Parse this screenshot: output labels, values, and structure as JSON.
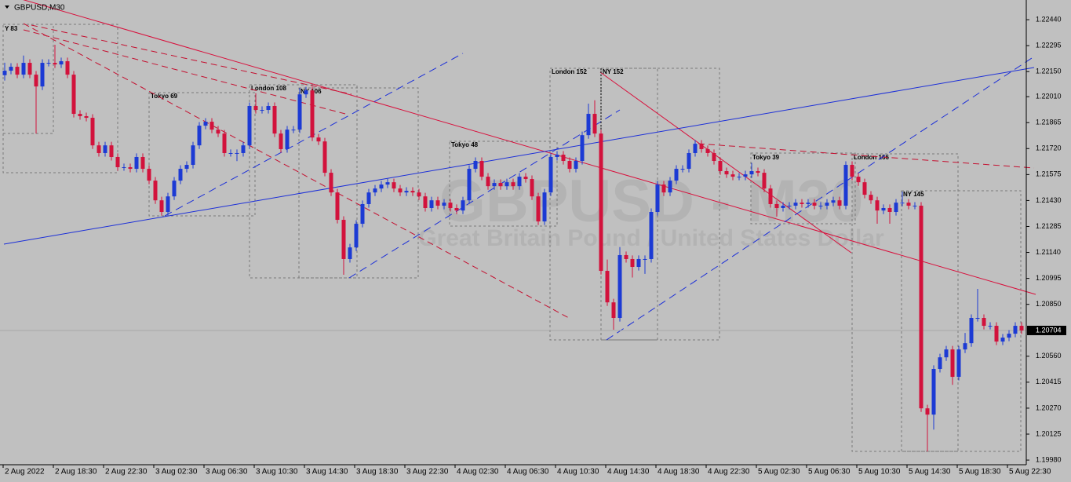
{
  "chart_data": {
    "type": "candlestick",
    "title": "GBPUSD,M30",
    "watermark": "GBPUSD - M30",
    "watermark_subtitle": "Great Britain Pound / United States Dollar",
    "bull_color": "#1c3ad4",
    "bear_color": "#d2123c",
    "open": [
      1.2213,
      1.22155,
      1.22177,
      1.22133,
      1.22199,
      1.22133,
      1.22067,
      1.22199,
      1.22199,
      1.2219,
      1.22208,
      1.22133,
      1.21914,
      1.21901,
      1.21892,
      1.21738,
      1.21695,
      1.21738,
      1.21673,
      1.21616,
      1.21616,
      1.21607,
      1.21673,
      1.21607,
      1.21541,
      1.21431,
      1.21366,
      1.21453,
      1.21541,
      1.21607,
      1.21629,
      1.21738,
      1.21848,
      1.2187,
      1.21826,
      1.21804,
      1.21695,
      1.21695,
      1.21695,
      1.21738,
      1.21958,
      1.21936,
      1.21936,
      1.21958,
      1.21804,
      1.21717,
      1.21826,
      1.21826,
      1.22023,
      1.22045,
      1.21782,
      1.2176,
      1.21585,
      1.21475,
      1.21322,
      1.21103,
      1.21168,
      1.213,
      1.2141,
      1.21475,
      1.21497,
      1.21519,
      1.21532,
      1.21497,
      1.21475,
      1.21484,
      1.21475,
      1.21453,
      1.21388,
      1.21431,
      1.21401,
      1.21418,
      1.21388,
      1.21374,
      1.21431,
      1.21607,
      1.21651,
      1.21563,
      1.2151,
      1.21528,
      1.2151,
      1.21532,
      1.2151,
      1.21563,
      1.2155,
      1.21453,
      1.21313,
      1.21475,
      1.21673,
      1.21686,
      1.21651,
      1.21607,
      1.21651,
      1.21795,
      1.21914,
      1.21804,
      1.21037,
      1.20861,
      1.20774,
      1.21125,
      1.21103,
      1.21059,
      1.21103,
      1.21103,
      1.21366,
      1.21519,
      1.21475,
      1.21541,
      1.21607,
      1.21607,
      1.21695,
      1.21747,
      1.21717,
      1.21695,
      1.21651,
      1.21594,
      1.21576,
      1.21563,
      1.21563,
      1.21576,
      1.21594,
      1.21585,
      1.21497,
      1.2141,
      1.21388,
      1.21401,
      1.21401,
      1.21418,
      1.2141,
      1.21418,
      1.21401,
      1.21401,
      1.21418,
      1.21431,
      1.21401,
      1.21629,
      1.21563,
      1.21532,
      1.21462,
      1.21431,
      1.21374,
      1.21388,
      1.21366,
      1.21418,
      1.21418,
      1.21401,
      1.21401,
      1.20269,
      1.20234,
      1.20489,
      1.20554,
      1.20598,
      1.20445,
      1.20598,
      1.20633,
      1.20774,
      1.20774,
      1.2073,
      1.2073,
      1.20642,
      1.20664,
      1.20686,
      1.2073
    ],
    "high": [
      1.222,
      1.22197,
      1.22197,
      1.2224,
      1.22219,
      1.22153,
      1.22219,
      1.22219,
      1.223,
      1.22228,
      1.22228,
      1.22153,
      1.21934,
      1.21921,
      1.21912,
      1.21758,
      1.21758,
      1.21758,
      1.21693,
      1.21636,
      1.21636,
      1.21693,
      1.21693,
      1.21627,
      1.21561,
      1.21451,
      1.21473,
      1.21561,
      1.21627,
      1.21649,
      1.21758,
      1.21868,
      1.2189,
      1.2189,
      1.21846,
      1.21824,
      1.21715,
      1.21715,
      1.21758,
      1.21978,
      1.2203,
      1.21956,
      1.21978,
      1.21978,
      1.21824,
      1.21846,
      1.21846,
      1.22059,
      1.22065,
      1.22065,
      1.21802,
      1.2178,
      1.21605,
      1.21495,
      1.21342,
      1.21188,
      1.2132,
      1.2143,
      1.21495,
      1.21517,
      1.21539,
      1.21552,
      1.21552,
      1.21517,
      1.21504,
      1.21504,
      1.21495,
      1.21473,
      1.21451,
      1.21451,
      1.21438,
      1.21438,
      1.21408,
      1.21451,
      1.21627,
      1.21671,
      1.21671,
      1.21583,
      1.21548,
      1.21548,
      1.21552,
      1.21552,
      1.21583,
      1.21583,
      1.2157,
      1.21473,
      1.21495,
      1.21693,
      1.21706,
      1.21706,
      1.21671,
      1.21671,
      1.21815,
      1.21971,
      1.2199,
      1.21824,
      1.211,
      1.20881,
      1.2117,
      1.21145,
      1.21123,
      1.21123,
      1.21123,
      1.21386,
      1.21539,
      1.21539,
      1.21561,
      1.21627,
      1.21627,
      1.21715,
      1.21767,
      1.21767,
      1.21737,
      1.21715,
      1.21671,
      1.21614,
      1.21596,
      1.21583,
      1.21596,
      1.2164,
      1.21614,
      1.21605,
      1.21517,
      1.2143,
      1.21421,
      1.21421,
      1.21438,
      1.21438,
      1.21438,
      1.21438,
      1.21421,
      1.21438,
      1.21451,
      1.21451,
      1.21649,
      1.21649,
      1.21583,
      1.21552,
      1.21482,
      1.21451,
      1.21408,
      1.21408,
      1.21438,
      1.2148,
      1.21438,
      1.21421,
      1.21421,
      1.20289,
      1.20509,
      1.20574,
      1.20618,
      1.20618,
      1.20618,
      1.2069,
      1.20794,
      1.20936,
      1.20794,
      1.2075,
      1.2075,
      1.20684,
      1.20706,
      1.2075,
      1.2075
    ],
    "low": [
      1.221,
      1.22135,
      1.22113,
      1.22113,
      1.22113,
      1.21804,
      1.22047,
      1.22179,
      1.2217,
      1.2217,
      1.22113,
      1.21894,
      1.21881,
      1.21872,
      1.21718,
      1.21675,
      1.21675,
      1.21653,
      1.21596,
      1.21596,
      1.21587,
      1.21587,
      1.21587,
      1.21521,
      1.21411,
      1.21346,
      1.21346,
      1.21433,
      1.21521,
      1.21587,
      1.21609,
      1.21718,
      1.21828,
      1.21806,
      1.21784,
      1.21675,
      1.21675,
      1.2165,
      1.21675,
      1.21718,
      1.21916,
      1.21916,
      1.21916,
      1.21784,
      1.21697,
      1.21697,
      1.21806,
      1.21806,
      1.22003,
      1.21762,
      1.2174,
      1.21565,
      1.21455,
      1.21302,
      1.21015,
      1.21083,
      1.21148,
      1.2128,
      1.2139,
      1.21455,
      1.21477,
      1.21499,
      1.21477,
      1.21455,
      1.21455,
      1.21455,
      1.21433,
      1.21368,
      1.21368,
      1.21381,
      1.21381,
      1.21368,
      1.21354,
      1.21354,
      1.21411,
      1.21587,
      1.21543,
      1.2149,
      1.2149,
      1.2149,
      1.2149,
      1.2149,
      1.2149,
      1.2153,
      1.21433,
      1.21293,
      1.21293,
      1.21455,
      1.21653,
      1.21631,
      1.21587,
      1.21587,
      1.21631,
      1.21775,
      1.21784,
      1.21017,
      1.20841,
      1.20708,
      1.20754,
      1.21083,
      1.21,
      1.21039,
      1.2102,
      1.21083,
      1.21346,
      1.21455,
      1.21455,
      1.21521,
      1.21587,
      1.21587,
      1.21675,
      1.21697,
      1.21675,
      1.21631,
      1.21574,
      1.21556,
      1.21543,
      1.21543,
      1.21543,
      1.21556,
      1.21565,
      1.21477,
      1.2139,
      1.2134,
      1.21368,
      1.21381,
      1.21381,
      1.2139,
      1.2139,
      1.21381,
      1.21381,
      1.21381,
      1.21398,
      1.21381,
      1.21381,
      1.21543,
      1.21512,
      1.21442,
      1.21411,
      1.213,
      1.21354,
      1.213,
      1.21346,
      1.21398,
      1.21381,
      1.21381,
      1.20249,
      1.20028,
      1.2015,
      1.20469,
      1.20534,
      1.204,
      1.20425,
      1.20578,
      1.20613,
      1.20754,
      1.2071,
      1.2071,
      1.20622,
      1.20622,
      1.20644,
      1.20666,
      1.20684
    ],
    "close": [
      1.22155,
      1.22177,
      1.22133,
      1.22199,
      1.22133,
      1.22067,
      1.22199,
      1.22199,
      1.2219,
      1.22208,
      1.22133,
      1.21914,
      1.21901,
      1.21892,
      1.21738,
      1.21695,
      1.21738,
      1.21673,
      1.21616,
      1.21616,
      1.21607,
      1.21673,
      1.21607,
      1.21541,
      1.21431,
      1.21366,
      1.21453,
      1.21541,
      1.21607,
      1.21629,
      1.21738,
      1.21848,
      1.2187,
      1.21826,
      1.21804,
      1.21695,
      1.21695,
      1.21695,
      1.21738,
      1.21958,
      1.21936,
      1.21936,
      1.21958,
      1.21804,
      1.21717,
      1.21826,
      1.21826,
      1.22023,
      1.22045,
      1.21782,
      1.2176,
      1.21585,
      1.21475,
      1.21322,
      1.21103,
      1.21168,
      1.213,
      1.2141,
      1.21475,
      1.21497,
      1.21519,
      1.21532,
      1.21497,
      1.21475,
      1.21484,
      1.21475,
      1.21453,
      1.21388,
      1.21431,
      1.21401,
      1.21418,
      1.21388,
      1.21374,
      1.21431,
      1.21607,
      1.21651,
      1.21563,
      1.2151,
      1.21528,
      1.2151,
      1.21532,
      1.2151,
      1.21563,
      1.2155,
      1.21453,
      1.21313,
      1.21475,
      1.21673,
      1.21686,
      1.21651,
      1.21607,
      1.21651,
      1.21795,
      1.21914,
      1.21804,
      1.21037,
      1.20861,
      1.20774,
      1.21125,
      1.21103,
      1.21059,
      1.21103,
      1.21103,
      1.21366,
      1.21519,
      1.21475,
      1.21541,
      1.21607,
      1.21607,
      1.21695,
      1.21747,
      1.21717,
      1.21695,
      1.21651,
      1.21594,
      1.21576,
      1.21563,
      1.21563,
      1.21576,
      1.21594,
      1.21585,
      1.21497,
      1.2141,
      1.21388,
      1.21401,
      1.21401,
      1.21418,
      1.2141,
      1.21418,
      1.21401,
      1.21401,
      1.21418,
      1.21431,
      1.21401,
      1.21629,
      1.21563,
      1.21532,
      1.21462,
      1.21431,
      1.21374,
      1.21388,
      1.21366,
      1.21418,
      1.21418,
      1.21401,
      1.21401,
      1.20269,
      1.20234,
      1.20489,
      1.20554,
      1.20598,
      1.20445,
      1.20598,
      1.20633,
      1.20774,
      1.20774,
      1.2073,
      1.2073,
      1.20642,
      1.20664,
      1.20686,
      1.2073,
      1.20704
    ],
    "xticks": [
      {
        "value": 0,
        "label": "2 Aug 2022"
      },
      {
        "value": 8,
        "label": "2 Aug 18:30"
      },
      {
        "value": 16,
        "label": "2 Aug 22:30"
      },
      {
        "value": 24,
        "label": "3 Aug 02:30"
      },
      {
        "value": 32,
        "label": "3 Aug 06:30"
      },
      {
        "value": 40,
        "label": "3 Aug 10:30"
      },
      {
        "value": 48,
        "label": "3 Aug 14:30"
      },
      {
        "value": 56,
        "label": "3 Aug 18:30"
      },
      {
        "value": 64,
        "label": "3 Aug 22:30"
      },
      {
        "value": 72,
        "label": "4 Aug 02:30"
      },
      {
        "value": 80,
        "label": "4 Aug 06:30"
      },
      {
        "value": 88,
        "label": "4 Aug 10:30"
      },
      {
        "value": 96,
        "label": "4 Aug 14:30"
      },
      {
        "value": 104,
        "label": "4 Aug 18:30"
      },
      {
        "value": 112,
        "label": "4 Aug 22:30"
      },
      {
        "value": 120,
        "label": "5 Aug 02:30"
      },
      {
        "value": 128,
        "label": "5 Aug 06:30"
      },
      {
        "value": 136,
        "label": "5 Aug 10:30"
      },
      {
        "value": 144,
        "label": "5 Aug 14:30"
      },
      {
        "value": 152,
        "label": "5 Aug 18:30"
      },
      {
        "value": 160,
        "label": "5 Aug 22:30"
      }
    ],
    "ylim": [
      1.19954,
      1.2255
    ],
    "yticks": [
      {
        "value": 1.2244,
        "label": "1.22440"
      },
      {
        "value": 1.22295,
        "label": "1.22295"
      },
      {
        "value": 1.2215,
        "label": "1.22150"
      },
      {
        "value": 1.2201,
        "label": "1.22010"
      },
      {
        "value": 1.21865,
        "label": "1.21865"
      },
      {
        "value": 1.2172,
        "label": "1.21720"
      },
      {
        "value": 1.21575,
        "label": "1.21575"
      },
      {
        "value": 1.2143,
        "label": "1.21430"
      },
      {
        "value": 1.21285,
        "label": "1.21285"
      },
      {
        "value": 1.2114,
        "label": "1.21140"
      },
      {
        "value": 1.20995,
        "label": "1.20995"
      },
      {
        "value": 1.2085,
        "label": "1.20850"
      },
      {
        "value": 1.2056,
        "label": "1.20560"
      },
      {
        "value": 1.20415,
        "label": "1.20415"
      },
      {
        "value": 1.2027,
        "label": "1.20270"
      },
      {
        "value": 1.20125,
        "label": "1.20125"
      },
      {
        "value": 1.1998,
        "label": "1.19980"
      }
    ],
    "current_price": 1.20704,
    "sessions": [
      "Y 83",
      "Tokyo 69",
      "London 108",
      "NY 106",
      "Tokyo 48",
      "London 152",
      "NY 152",
      "Tokyo 39",
      "London 166",
      "NY 145"
    ]
  }
}
